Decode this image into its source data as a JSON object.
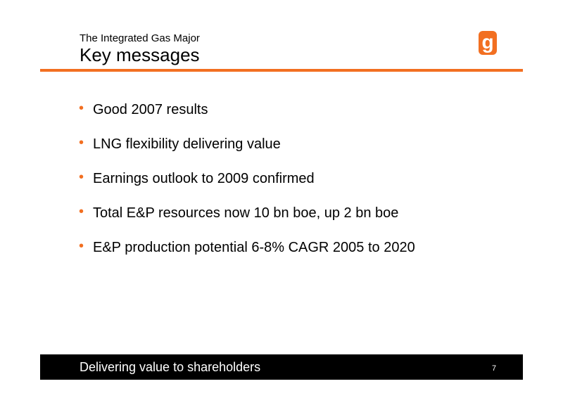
{
  "header": {
    "subtitle": "The Integrated Gas Major",
    "title": "Key messages",
    "logo": "g"
  },
  "bullets": [
    "Good 2007 results",
    "LNG flexibility delivering value",
    "Earnings outlook to 2009 confirmed",
    "Total E&P resources now 10 bn boe, up 2 bn boe",
    "E&P production potential 6-8% CAGR 2005 to 2020"
  ],
  "footer": {
    "text": "Delivering value to shareholders",
    "page": "7"
  }
}
